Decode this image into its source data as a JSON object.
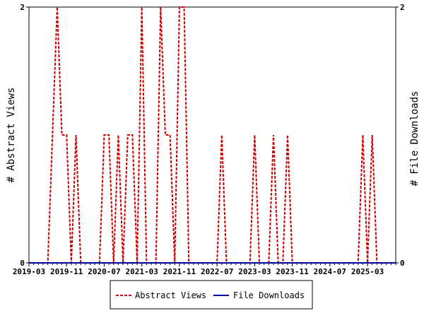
{
  "chart_data": {
    "type": "line",
    "title": "",
    "xlabel": "",
    "ylabel_left": "# Abstract Views",
    "ylabel_right": "# File Downloads",
    "ylim_left": [
      0,
      2
    ],
    "ylim_right": [
      0,
      2
    ],
    "yticks_left": [
      "0",
      "2"
    ],
    "yticks_right": [
      "0",
      "2"
    ],
    "x_range": [
      "2019-03",
      "2025-09"
    ],
    "xticks": [
      "2019-03",
      "2019-11",
      "2020-07",
      "2021-03",
      "2021-11",
      "2022-07",
      "2023-03",
      "2023-11",
      "2024-07",
      "2025-03"
    ],
    "grid": false,
    "legend_position": "bottom-center",
    "series": [
      {
        "name": "Abstract Views",
        "axis": "left",
        "color": "#cc0000",
        "dash": "dashed",
        "points": [
          [
            "2019-03",
            0
          ],
          [
            "2019-07",
            0
          ],
          [
            "2019-08",
            1
          ],
          [
            "2019-09",
            2
          ],
          [
            "2019-10",
            1
          ],
          [
            "2019-11",
            1
          ],
          [
            "2019-12",
            0
          ],
          [
            "2020-01",
            1
          ],
          [
            "2020-02",
            0
          ],
          [
            "2020-06",
            0
          ],
          [
            "2020-07",
            1
          ],
          [
            "2020-08",
            1
          ],
          [
            "2020-09",
            0
          ],
          [
            "2020-10",
            1
          ],
          [
            "2020-11",
            0
          ],
          [
            "2020-12",
            1
          ],
          [
            "2021-01",
            1
          ],
          [
            "2021-02",
            0
          ],
          [
            "2021-03",
            2
          ],
          [
            "2021-04",
            0
          ],
          [
            "2021-06",
            0
          ],
          [
            "2021-07",
            2
          ],
          [
            "2021-08",
            1
          ],
          [
            "2021-09",
            1
          ],
          [
            "2021-10",
            0
          ],
          [
            "2021-11",
            2
          ],
          [
            "2021-12",
            2
          ],
          [
            "2022-01",
            0
          ],
          [
            "2022-07",
            0
          ],
          [
            "2022-08",
            1
          ],
          [
            "2022-09",
            0
          ],
          [
            "2023-02",
            0
          ],
          [
            "2023-03",
            1
          ],
          [
            "2023-04",
            0
          ],
          [
            "2023-06",
            0
          ],
          [
            "2023-07",
            1
          ],
          [
            "2023-08",
            0
          ],
          [
            "2023-09",
            0
          ],
          [
            "2023-10",
            1
          ],
          [
            "2023-11",
            0
          ],
          [
            "2025-01",
            0
          ],
          [
            "2025-02",
            1
          ],
          [
            "2025-03",
            0
          ],
          [
            "2025-04",
            1
          ],
          [
            "2025-05",
            0
          ],
          [
            "2025-09",
            0
          ]
        ]
      },
      {
        "name": "File Downloads",
        "axis": "right",
        "color": "#000099",
        "dash": "solid",
        "points": [
          [
            "2019-03",
            0
          ],
          [
            "2025-09",
            0
          ]
        ]
      }
    ]
  }
}
